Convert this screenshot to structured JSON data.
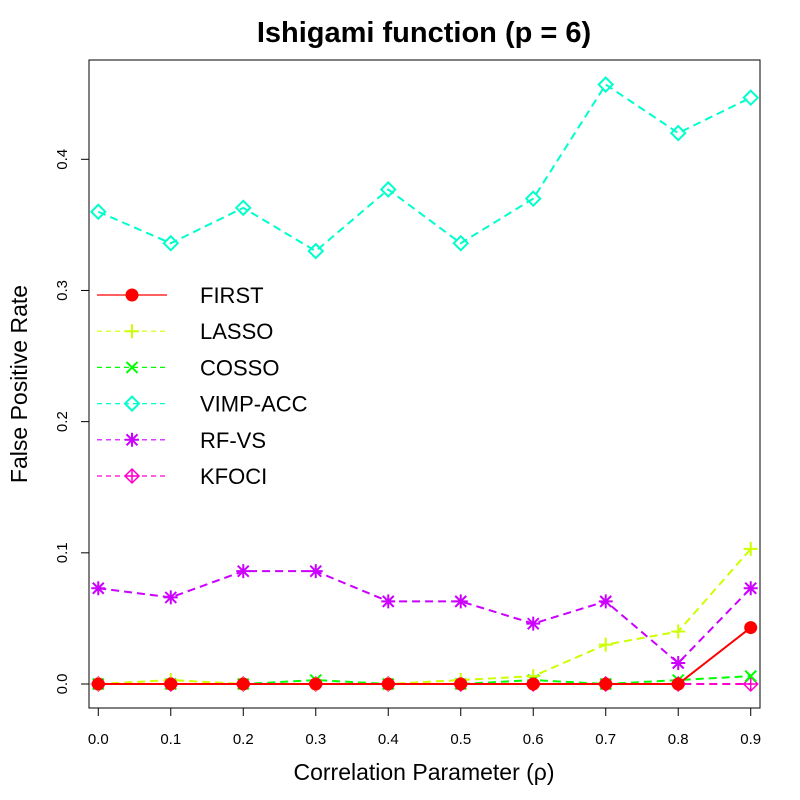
{
  "chart_data": {
    "type": "line",
    "title": "Ishigami function (p = 6)",
    "xlabel": "Correlation Parameter (ρ)",
    "ylabel": "False Positive Rate",
    "x": [
      0.0,
      0.1,
      0.2,
      0.3,
      0.4,
      0.5,
      0.6,
      0.7,
      0.8,
      0.9
    ],
    "x_tick_labels": [
      "0.0",
      "0.1",
      "0.2",
      "0.3",
      "0.4",
      "0.5",
      "0.6",
      "0.7",
      "0.8",
      "0.9"
    ],
    "y_ticks": [
      0.0,
      0.1,
      0.2,
      0.3,
      0.4
    ],
    "y_tick_labels": [
      "0.0",
      "0.1",
      "0.2",
      "0.3",
      "0.4"
    ],
    "xlim": [
      -0.0128,
      0.9128
    ],
    "ylim": [
      -0.0183,
      0.4757
    ],
    "legend_position": "middle-left",
    "series": [
      {
        "name": "FIRST",
        "color": "#ff0000",
        "marker": "filled-circle",
        "dashed": false,
        "values": [
          0.0,
          0.0,
          0.0,
          0.0,
          0.0,
          0.0,
          0.0,
          0.0,
          0.0,
          0.043
        ]
      },
      {
        "name": "LASSO",
        "color": "#ccff00",
        "marker": "plus",
        "dashed": true,
        "values": [
          0.0,
          0.003,
          0.0,
          0.0,
          0.0,
          0.003,
          0.006,
          0.03,
          0.04,
          0.103
        ]
      },
      {
        "name": "COSSO",
        "color": "#00ff00",
        "marker": "cross",
        "dashed": true,
        "values": [
          0.0,
          0.0,
          0.0,
          0.003,
          0.0,
          0.0,
          0.003,
          0.0,
          0.003,
          0.006
        ]
      },
      {
        "name": "VIMP-ACC",
        "color": "#00ffcc",
        "marker": "diamond",
        "dashed": true,
        "values": [
          0.36,
          0.336,
          0.363,
          0.33,
          0.377,
          0.336,
          0.37,
          0.457,
          0.42,
          0.447
        ]
      },
      {
        "name": "RF-VS",
        "color": "#cc00ff",
        "marker": "asterisk",
        "dashed": true,
        "values": [
          0.073,
          0.066,
          0.086,
          0.086,
          0.063,
          0.063,
          0.046,
          0.063,
          0.016,
          0.073
        ]
      },
      {
        "name": "KFOCI",
        "color": "#ff00cc",
        "marker": "diamond-plus",
        "dashed": true,
        "values": [
          0.0,
          0.0,
          0.0,
          0.0,
          0.0,
          0.0,
          0.0,
          0.0,
          0.0,
          0.0
        ]
      }
    ]
  }
}
